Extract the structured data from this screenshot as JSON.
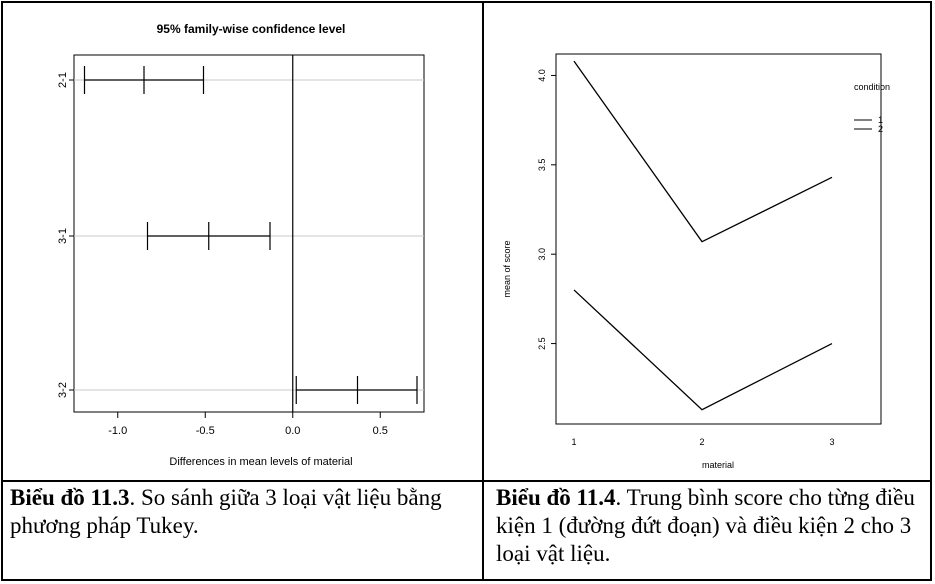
{
  "chart_data": [
    {
      "type": "interval",
      "title": "95% family-wise confidence level",
      "xlabel": "Differences in mean levels of material",
      "ylabel": "",
      "xlim": [
        -1.25,
        0.75
      ],
      "xticks": [
        "-1.0",
        "-0.5",
        "0.0",
        "0.5"
      ],
      "xtick_values": [
        -1.0,
        -0.5,
        0.0,
        0.5
      ],
      "grid": "horizontal",
      "categories": [
        "2-1",
        "3-1",
        "3-2"
      ],
      "estimates": [
        -0.85,
        -0.48,
        0.37
      ],
      "lower": [
        -1.19,
        -0.83,
        0.02
      ],
      "upper": [
        -0.51,
        -0.13,
        0.71
      ]
    },
    {
      "type": "line",
      "title": "",
      "xlabel": "material",
      "ylabel": "mean of score",
      "x": [
        1,
        2,
        3
      ],
      "xticks": [
        "1",
        "2",
        "3"
      ],
      "yticks": [
        "2.5",
        "3.0",
        "3.5",
        "4.0"
      ],
      "ytick_values": [
        2.5,
        3.0,
        3.5,
        4.0
      ],
      "ylim": [
        2.05,
        4.12
      ],
      "legend_title": "condition",
      "legend_position": "top-right",
      "series": [
        {
          "name": "1",
          "values": [
            4.08,
            3.07,
            3.43
          ]
        },
        {
          "name": "2",
          "values": [
            2.8,
            2.13,
            2.5
          ]
        }
      ]
    }
  ],
  "captions": {
    "left_bold": "Biểu đồ 11.3",
    "left_text": ". So sánh giữa 3 loại vật liệu bằng phương pháp Tukey.",
    "right_bold": "Biểu đồ 11.4",
    "right_text": ". Trung bình score cho từng điều kiện 1 (đường đứt đoạn) và điều kiện 2 cho 3 loại vật liệu."
  }
}
